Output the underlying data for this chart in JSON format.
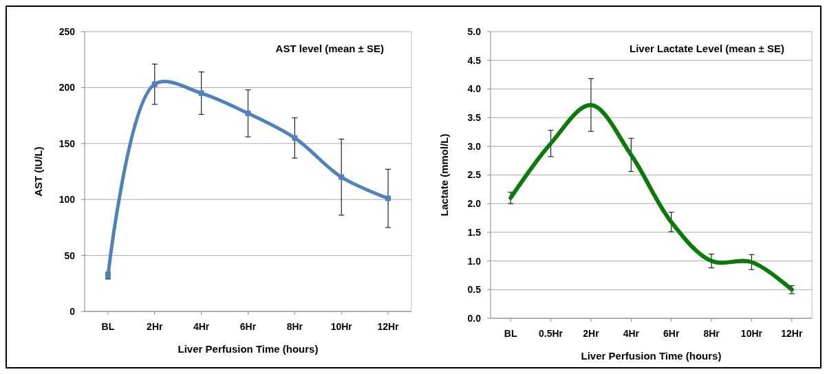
{
  "chart_data": [
    {
      "type": "line",
      "title": "AST level (mean ± SE)",
      "xlabel": "Liver Perfusion Time (hours)",
      "ylabel": "AST (IU/L)",
      "categories": [
        "BL",
        "2Hr",
        "4Hr",
        "6Hr",
        "8Hr",
        "10Hr",
        "12Hr"
      ],
      "series": [
        {
          "color": "#4f81bd",
          "values": [
            32,
            203,
            195,
            177,
            155,
            120,
            101
          ],
          "errors": [
            3,
            18,
            19,
            21,
            18,
            34,
            26
          ]
        }
      ],
      "ylim": [
        0,
        250
      ],
      "yticks": [
        0,
        50,
        100,
        150,
        200,
        250
      ],
      "grid": "y",
      "marker": "square",
      "line_style": "solid"
    },
    {
      "type": "line",
      "title": "Liver Lactate Level (mean ± SE)",
      "xlabel": "Liver Perfusion Time (hours)",
      "ylabel": "Lactate (mmol/L)",
      "categories": [
        "BL",
        "0.5Hr",
        "2Hr",
        "4Hr",
        "6Hr",
        "8Hr",
        "10Hr",
        "12Hr"
      ],
      "series": [
        {
          "color": "#0a7a0a",
          "values": [
            2.1,
            3.05,
            3.72,
            2.85,
            1.68,
            1.0,
            0.98,
            0.5
          ],
          "errors": [
            0.1,
            0.23,
            0.46,
            0.29,
            0.17,
            0.12,
            0.13,
            0.07
          ]
        }
      ],
      "ylim": [
        0,
        5
      ],
      "yticks": [
        {
          "value": 0,
          "label": "0.0"
        },
        {
          "value": 0.5,
          "label": "0.5"
        },
        {
          "value": 1,
          "label": "1.0"
        },
        {
          "value": 1.5,
          "label": "1.5"
        },
        {
          "value": 2,
          "label": "2.0"
        },
        {
          "value": 2.5,
          "label": "2.5"
        },
        {
          "value": 3,
          "label": "3.0"
        },
        {
          "value": 3.5,
          "label": "3.5"
        },
        {
          "value": 4,
          "label": "4.0"
        },
        {
          "value": 4.5,
          "label": "4.5"
        },
        {
          "value": 5,
          "label": "5.0"
        }
      ],
      "grid": "y",
      "marker": "none",
      "line_style": "solid"
    }
  ]
}
